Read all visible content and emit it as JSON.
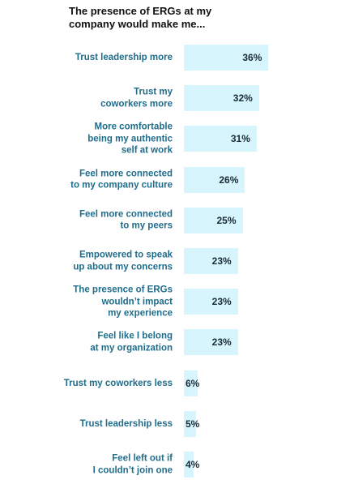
{
  "chart_data": {
    "type": "bar",
    "orientation": "horizontal",
    "title": "The presence of ERGs at my\ncompany would make me...",
    "categories": [
      "Trust leadership more",
      "Trust my\ncoworkers more",
      "More comfortable\nbeing my authentic\nself at work",
      "Feel more connected\nto my company culture",
      "Feel more connected\nto my peers",
      "Empowered to speak\nup about my concerns",
      "The presence of ERGs\nwouldn’t impact\nmy experience",
      "Feel like I belong\nat my organization",
      "Trust my coworkers less",
      "Trust leadership less",
      "Feel left out if\nI couldn’t join one"
    ],
    "values": [
      36,
      32,
      31,
      26,
      25,
      23,
      23,
      23,
      6,
      5,
      4
    ],
    "value_labels": [
      "36%",
      "32%",
      "31%",
      "26%",
      "25%",
      "23%",
      "23%",
      "23%",
      "6%",
      "5%",
      "4%"
    ],
    "color": "#d6f5fc"
  }
}
